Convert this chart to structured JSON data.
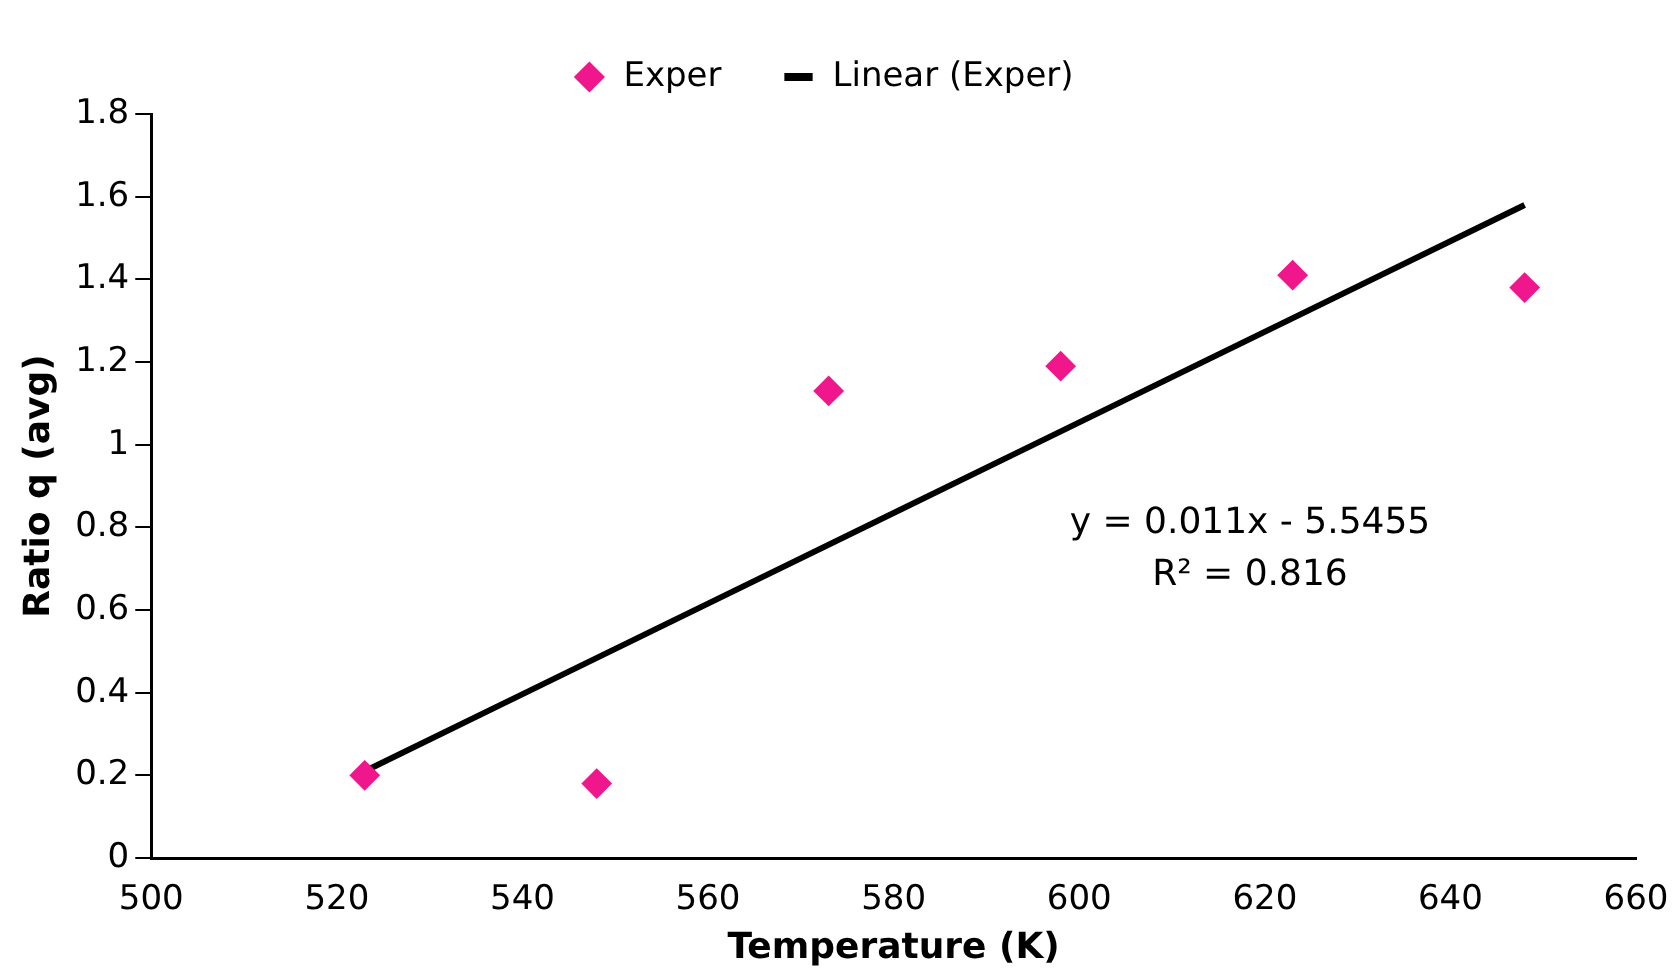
{
  "chart_data": {
    "type": "scatter",
    "xlabel": "Temperature (K)",
    "ylabel": "Ratio q (avg)",
    "x": [
      523,
      548,
      573,
      598,
      623,
      648
    ],
    "series": [
      {
        "name": "Exper",
        "color": "#f0168c",
        "marker": "diamond",
        "values": [
          0.2,
          0.18,
          1.13,
          1.19,
          1.41,
          1.38
        ]
      },
      {
        "name": "Linear (Exper)",
        "type": "line",
        "color": "#000000",
        "marker": "none",
        "line_style": "solid",
        "x": [
          523,
          648
        ],
        "values": [
          0.21,
          1.58
        ]
      }
    ],
    "xlim": [
      500,
      660
    ],
    "xticks": [
      500,
      520,
      540,
      560,
      580,
      600,
      620,
      640,
      660
    ],
    "ylim": [
      0,
      1.8
    ],
    "yticks": [
      0,
      0.2,
      0.4,
      0.6,
      0.8,
      1,
      1.2,
      1.4,
      1.6,
      1.8
    ],
    "annotations": [
      "y = 0.011x - 5.5455",
      "R² = 0.816"
    ],
    "grid": false,
    "legend": "top"
  }
}
